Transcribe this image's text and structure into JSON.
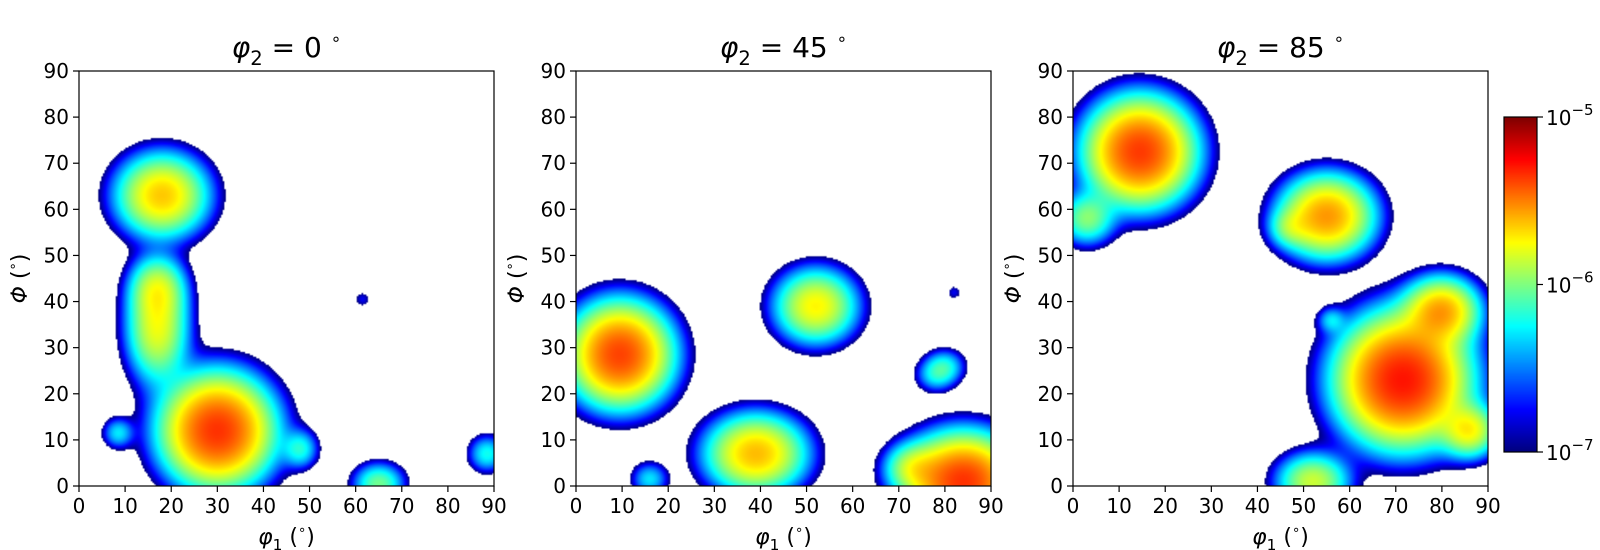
{
  "chart_data": [
    {
      "type": "heatmap",
      "title": {
        "symbol": "φ",
        "sub": "2",
        "rest": " = 0 ",
        "sup": "∘"
      },
      "xlabel": {
        "symbol": "φ",
        "sub": "1",
        "rest": " (",
        "sup": "∘",
        "end": ")"
      },
      "ylabel": {
        "symbol": "Φ",
        "rest": " (",
        "sup": "∘",
        "end": ")"
      },
      "xlim": [
        0,
        90
      ],
      "ylim": [
        0,
        90
      ],
      "xticks": [
        "0",
        "10",
        "20",
        "30",
        "40",
        "50",
        "60",
        "70",
        "80",
        "90"
      ],
      "yticks": [
        "0",
        "10",
        "20",
        "30",
        "40",
        "50",
        "60",
        "70",
        "80",
        "90"
      ],
      "blobs": [
        {
          "x": 18,
          "y": 63,
          "sx": 5.5,
          "sy": 5.0,
          "intensity": 0.68
        },
        {
          "x": 17,
          "y": 34,
          "sx": 3.8,
          "sy": 6.5,
          "intensity": 0.48
        },
        {
          "x": 17,
          "y": 43,
          "sx": 3.5,
          "sy": 4.0,
          "intensity": 0.35
        },
        {
          "x": 30,
          "y": 12,
          "sx": 6.5,
          "sy": 6.5,
          "intensity": 1.35
        },
        {
          "x": 8.5,
          "y": 11.5,
          "sx": 2.0,
          "sy": 2.0,
          "intensity": 0.15
        },
        {
          "x": 48,
          "y": 8,
          "sx": 2.3,
          "sy": 2.5,
          "intensity": 0.18
        },
        {
          "x": 61.5,
          "y": 40.5,
          "sx": 1.2,
          "sy": 1.2,
          "intensity": 0.05
        },
        {
          "x": 65,
          "y": 0.5,
          "sx": 3.2,
          "sy": 2.6,
          "intensity": 0.28
        },
        {
          "x": 88.5,
          "y": 7,
          "sx": 2.4,
          "sy": 2.4,
          "intensity": 0.18
        }
      ]
    },
    {
      "type": "heatmap",
      "title": {
        "symbol": "φ",
        "sub": "2",
        "rest": " = 45 ",
        "sup": "∘"
      },
      "xlabel": {
        "symbol": "φ",
        "sub": "1",
        "rest": " (",
        "sup": "∘",
        "end": ")"
      },
      "ylabel": {
        "symbol": "Φ",
        "rest": " (",
        "sup": "∘",
        "end": ")"
      },
      "xlim": [
        0,
        90
      ],
      "ylim": [
        0,
        90
      ],
      "xticks": [
        "0",
        "10",
        "20",
        "30",
        "40",
        "50",
        "60",
        "70",
        "80",
        "90"
      ],
      "yticks": [
        "0",
        "10",
        "20",
        "30",
        "40",
        "50",
        "60",
        "70",
        "80",
        "90"
      ],
      "blobs": [
        {
          "x": 9.5,
          "y": 28.5,
          "sx": 6.0,
          "sy": 6.0,
          "intensity": 1.25
        },
        {
          "x": 52,
          "y": 39,
          "sx": 5.0,
          "sy": 4.5,
          "intensity": 0.55
        },
        {
          "x": 39,
          "y": 7,
          "sx": 6.0,
          "sy": 4.7,
          "intensity": 0.72
        },
        {
          "x": 16,
          "y": 1.5,
          "sx": 2.4,
          "sy": 2.2,
          "intensity": 0.15
        },
        {
          "x": 82,
          "y": 42,
          "sx": 1.1,
          "sy": 1.1,
          "intensity": 0.05
        },
        {
          "x": 80,
          "y": 26,
          "sx": 2.6,
          "sy": 2.2,
          "intensity": 0.16
        },
        {
          "x": 78,
          "y": 24,
          "sx": 2.6,
          "sy": 2.2,
          "intensity": 0.14
        },
        {
          "x": 84,
          "y": 1,
          "sx": 6.5,
          "sy": 5.5,
          "intensity": 1.35
        },
        {
          "x": 73,
          "y": 4,
          "sx": 3.5,
          "sy": 3.0,
          "intensity": 0.3
        }
      ]
    },
    {
      "type": "heatmap",
      "title": {
        "symbol": "φ",
        "sub": "2",
        "rest": " = 85 ",
        "sup": "∘"
      },
      "xlabel": {
        "symbol": "φ",
        "sub": "1",
        "rest": " (",
        "sup": "∘",
        "end": ")"
      },
      "ylabel": {
        "symbol": "Φ",
        "rest": " (",
        "sup": "∘",
        "end": ")"
      },
      "xlim": [
        0,
        90
      ],
      "ylim": [
        0,
        90
      ],
      "xticks": [
        "0",
        "10",
        "20",
        "30",
        "40",
        "50",
        "60",
        "70",
        "80",
        "90"
      ],
      "yticks": [
        "0",
        "10",
        "20",
        "30",
        "40",
        "50",
        "60",
        "70",
        "80",
        "90"
      ],
      "blobs": [
        {
          "x": 14.5,
          "y": 72.5,
          "sx": 6.3,
          "sy": 6.2,
          "intensity": 1.3
        },
        {
          "x": 3,
          "y": 58,
          "sx": 3.5,
          "sy": 3.3,
          "intensity": 0.3
        },
        {
          "x": 55,
          "y": 58.5,
          "sx": 5.6,
          "sy": 4.9,
          "intensity": 0.85
        },
        {
          "x": 47,
          "y": 56,
          "sx": 2.6,
          "sy": 2.4,
          "intensity": 0.18
        },
        {
          "x": 71.5,
          "y": 23,
          "sx": 7.5,
          "sy": 7.5,
          "intensity": 1.55
        },
        {
          "x": 80,
          "y": 38,
          "sx": 4.5,
          "sy": 4.0,
          "intensity": 0.75
        },
        {
          "x": 86,
          "y": 12,
          "sx": 3.5,
          "sy": 3.3,
          "intensity": 0.5
        },
        {
          "x": 56,
          "y": 36,
          "sx": 1.8,
          "sy": 1.7,
          "intensity": 0.12
        },
        {
          "x": 52,
          "y": 1,
          "sx": 4.5,
          "sy": 3.5,
          "intensity": 0.42
        }
      ]
    }
  ],
  "colorbar": {
    "colormap": "jet",
    "scale": "log",
    "range": [
      1e-07,
      1e-05
    ],
    "ticks": [
      {
        "base": "10",
        "exp": "−5",
        "value": 1e-05
      },
      {
        "base": "10",
        "exp": "−6",
        "value": 1e-06
      },
      {
        "base": "10",
        "exp": "−7",
        "value": 1e-07
      }
    ]
  }
}
